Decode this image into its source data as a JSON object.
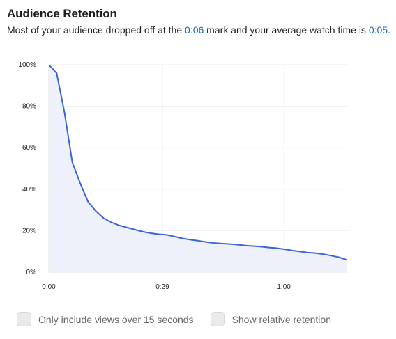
{
  "header": {
    "title": "Audience Retention",
    "summary_prefix": "Most of your audience dropped off at the ",
    "dropoff_time": "0:06",
    "summary_middle": " mark and your average watch time is ",
    "avg_watch_time": "0:05",
    "summary_suffix": "."
  },
  "colors": {
    "line": "#3a64d8",
    "fill": "#eef0fa",
    "highlight": "#1a66cc",
    "grid": "#eceef1"
  },
  "chart_data": {
    "type": "area",
    "title": "",
    "xlabel": "",
    "ylabel": "",
    "x_unit": "seconds",
    "xlim": [
      0,
      76
    ],
    "ylim": [
      0,
      100
    ],
    "y_ticks": [
      "0%",
      "20%",
      "40%",
      "60%",
      "80%",
      "100%"
    ],
    "y_tick_values": [
      0,
      20,
      40,
      60,
      80,
      100
    ],
    "x_ticks": [
      "0:00",
      "0:29",
      "1:00"
    ],
    "x_tick_values": [
      0,
      29,
      60
    ],
    "grid": true,
    "series": [
      {
        "x": [
          0,
          2,
          4,
          6,
          8,
          10,
          12,
          14,
          16,
          18,
          20,
          22,
          24,
          26,
          28,
          30,
          32,
          34,
          36,
          38,
          40,
          42,
          44,
          46,
          48,
          50,
          52,
          54,
          56,
          58,
          60,
          62,
          64,
          66,
          68,
          70,
          72,
          74,
          76
        ],
        "y": [
          100,
          96,
          77,
          53,
          43,
          34,
          29.5,
          26,
          24,
          22.5,
          21.5,
          20.5,
          19.5,
          18.8,
          18.3,
          18,
          17.2,
          16.3,
          15.7,
          15.2,
          14.6,
          14.1,
          13.8,
          13.6,
          13.3,
          12.9,
          12.6,
          12.3,
          11.9,
          11.6,
          11.1,
          10.5,
          10,
          9.5,
          9.2,
          8.7,
          8,
          7.2,
          6
        ]
      }
    ]
  },
  "options": [
    {
      "label": "Only include views over 15 seconds",
      "checked": false
    },
    {
      "label": "Show relative retention",
      "checked": false
    }
  ]
}
